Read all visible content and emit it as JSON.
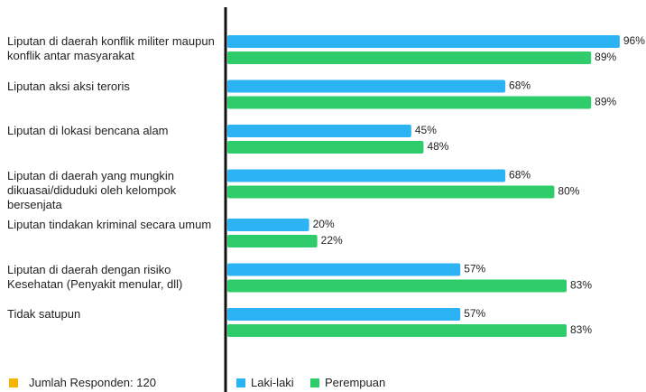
{
  "chart_data": {
    "type": "bar",
    "orientation": "horizontal",
    "categories": [
      "Liputan di daerah konflik militer maupun konflik antar masyarakat",
      "Liputan aksi aksi teroris",
      "Liputan di lokasi bencana alam",
      "Liputan di daerah yang mungkin dikuasai/diduduki oleh kelompok bersenjata",
      "Liputan tindakan kriminal secara umum",
      "Liputan di daerah dengan risiko Kesehatan (Penyakit menular, dll)",
      "Tidak satupun"
    ],
    "series": [
      {
        "name": "Laki-laki",
        "color": "#2bb3f3",
        "values": [
          96,
          68,
          45,
          68,
          20,
          57,
          57
        ],
        "value_labels": [
          "96%",
          "68%",
          "45%",
          "68%",
          "20%",
          "57%",
          "57%"
        ]
      },
      {
        "name": "Perempuan",
        "color": "#2ecc6a",
        "values": [
          89,
          89,
          48,
          80,
          22,
          83,
          83
        ],
        "value_labels": [
          "89%",
          "89%",
          "48%",
          "80%",
          "22%",
          "83%",
          "83%"
        ]
      }
    ],
    "xlim": [
      0,
      100
    ],
    "footnote": "Jumlah Responden: 120",
    "footnote_color": "#f4b400"
  }
}
